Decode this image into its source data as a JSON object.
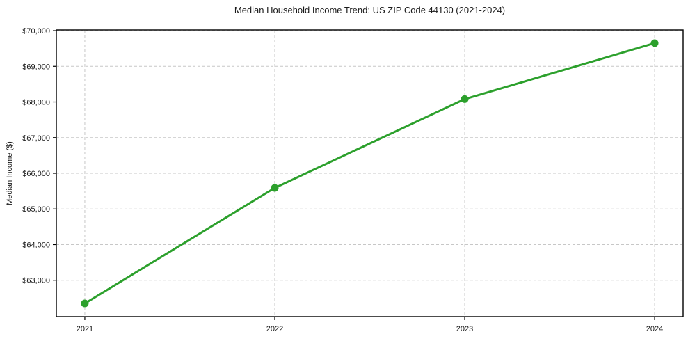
{
  "figure": {
    "title": "Median Household Income Trend: US ZIP Code 44130 (2021-2024)"
  },
  "chart_data": {
    "type": "line",
    "title": "Median Household Income Trend: US ZIP Code 44130 (2021-2024)",
    "xlabel": "",
    "ylabel": "Median Income ($)",
    "x": [
      2021,
      2022,
      2023,
      2024
    ],
    "x_tick_labels": [
      "2021",
      "2022",
      "2023",
      "2024"
    ],
    "series": [
      {
        "name": "Median Household Income",
        "values": [
          62350,
          65590,
          68080,
          69650
        ],
        "color": "#2ca02c",
        "marker": "circle",
        "marker_radius": 5.5,
        "line_width": 3
      }
    ],
    "y_ticks": [
      63000,
      64000,
      65000,
      66000,
      67000,
      68000,
      69000,
      70000
    ],
    "y_tick_labels": [
      "$63,000",
      "$64,000",
      "$65,000",
      "$66,000",
      "$67,000",
      "$68,000",
      "$69,000",
      "$70,000"
    ],
    "xlim": [
      2020.85,
      2024.15
    ],
    "ylim": [
      61980,
      70020
    ],
    "grid": true,
    "grid_style": "dashed",
    "grid_color": "#c7c7c7",
    "axis_color": "#000000",
    "background_color": "#ffffff",
    "legend": false
  }
}
